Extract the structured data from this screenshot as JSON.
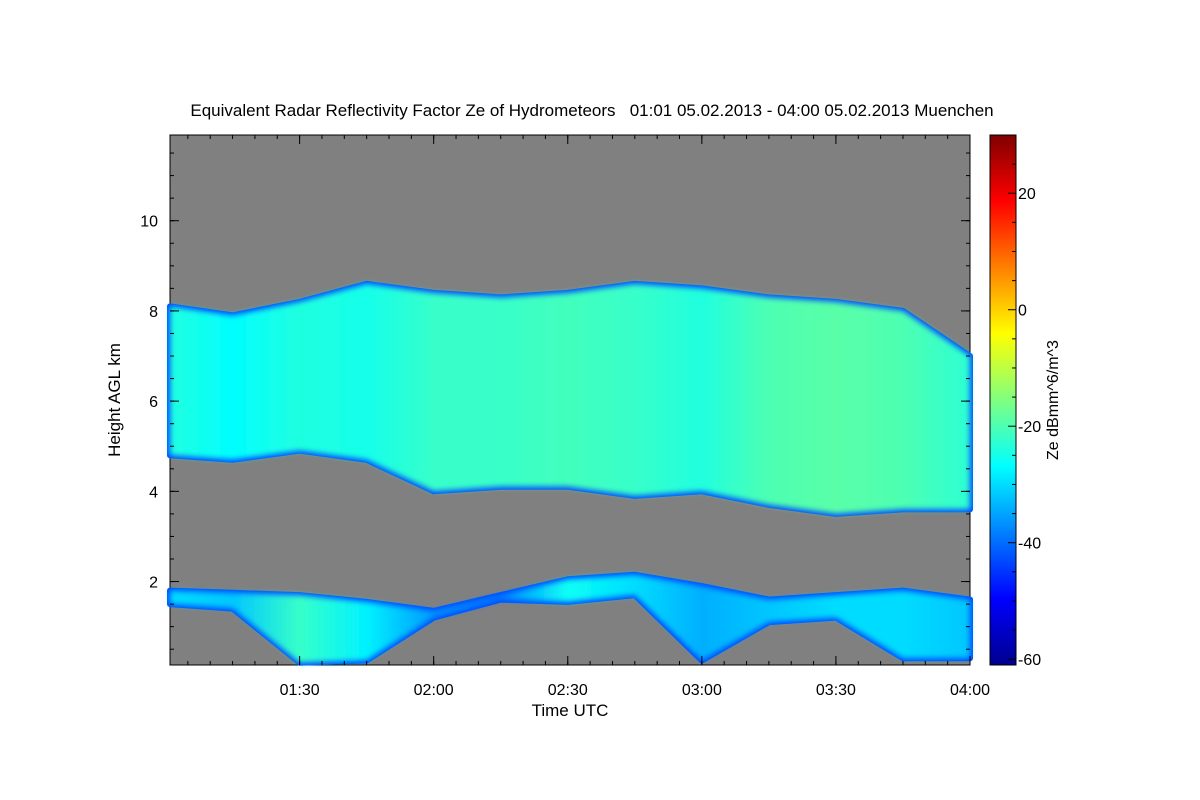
{
  "chart_data": {
    "type": "heatmap",
    "title": "Equivalent Radar Reflectivity Factor Ze of Hydrometeors   01:01 05.02.2013 - 04:00 05.02.2013 Muenchen",
    "xlabel": "Time UTC",
    "ylabel": "Height AGL km",
    "colorbar_label": "Ze dBmm^6/m^3",
    "x_start": "01:01",
    "x_end": "04:00",
    "x_ticks": [
      "01:30",
      "02:00",
      "02:30",
      "03:00",
      "03:30",
      "04:00"
    ],
    "ylim": [
      0.15,
      11.9
    ],
    "y_ticks": [
      2,
      4,
      6,
      8,
      10
    ],
    "colorbar_range": [
      -61,
      30
    ],
    "colorbar_ticks": [
      -60,
      -40,
      -20,
      0,
      20
    ],
    "background_color": "#808080",
    "colormap": [
      "#00008f",
      "#0000ff",
      "#0080ff",
      "#00ffff",
      "#80ff80",
      "#ffff00",
      "#ff8000",
      "#ff0000",
      "#800000"
    ],
    "upper_layer": {
      "time": [
        "01:01",
        "01:15",
        "01:30",
        "01:45",
        "02:00",
        "02:15",
        "02:30",
        "02:45",
        "03:00",
        "03:15",
        "03:30",
        "03:45",
        "04:00"
      ],
      "base_km": [
        4.8,
        4.7,
        4.9,
        4.7,
        4.0,
        4.1,
        4.1,
        3.9,
        4.0,
        3.7,
        3.5,
        3.6,
        3.6
      ],
      "top_km": [
        8.1,
        7.9,
        8.2,
        8.6,
        8.4,
        8.3,
        8.4,
        8.6,
        8.5,
        8.3,
        8.2,
        8.0,
        7.0
      ],
      "peak_ze_dbz": [
        -24,
        -27,
        -24,
        -25,
        -22,
        -22,
        -21,
        -22,
        -24,
        -20,
        -19,
        -20,
        -23
      ]
    },
    "lower_layer": {
      "time": [
        "01:01",
        "01:15",
        "01:30",
        "01:45",
        "02:00",
        "02:15",
        "02:30",
        "02:45",
        "03:00",
        "03:15",
        "03:30",
        "03:45",
        "04:00"
      ],
      "base_km": [
        1.5,
        1.4,
        0.2,
        0.25,
        1.2,
        1.6,
        1.55,
        1.7,
        0.25,
        1.1,
        1.2,
        0.3,
        0.3
      ],
      "top_km": [
        1.8,
        1.75,
        1.7,
        1.55,
        1.35,
        1.7,
        2.05,
        2.15,
        1.9,
        1.6,
        1.7,
        1.8,
        1.6
      ],
      "peak_ze_dbz": [
        -30,
        -32,
        -22,
        -28,
        -36,
        -38,
        -26,
        -30,
        -34,
        -32,
        -30,
        -30,
        -32
      ]
    }
  }
}
